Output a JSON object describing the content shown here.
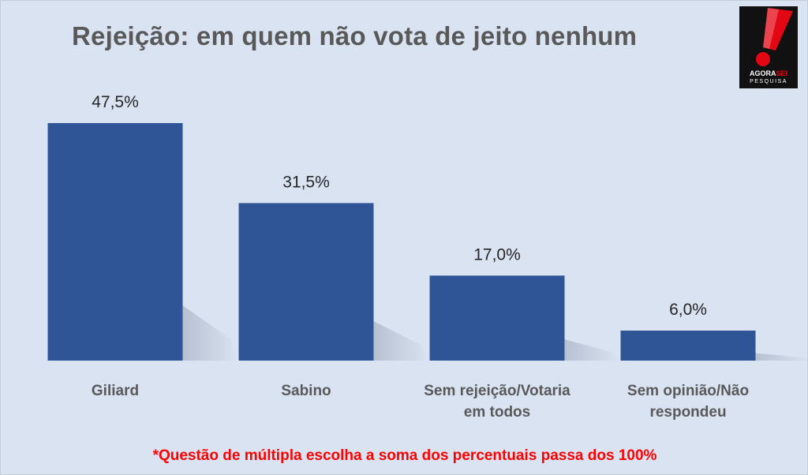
{
  "chart_data": {
    "type": "bar",
    "title": "Rejeição: em quem não vota de jeito nenhum",
    "categories": [
      "Giliard",
      "Sabino",
      "Sem rejeição/Votaria em todos",
      "Sem opinião/Não respondeu"
    ],
    "category_lines": [
      [
        "Giliard"
      ],
      [
        "Sabino"
      ],
      [
        "Sem rejeição/Votaria",
        "em todos"
      ],
      [
        "Sem opinião/Não",
        "respondeu"
      ]
    ],
    "values": [
      47.5,
      31.5,
      17.0,
      6.0
    ],
    "data_labels": [
      "47,5%",
      "31,5%",
      "17,0%",
      "6,0%"
    ],
    "xlabel": "",
    "ylabel": "",
    "ylim": [
      0,
      50
    ],
    "grid": false,
    "legend": "none",
    "bar_color": "#2f5597",
    "footnote": "*Questão de múltipla escolha a soma dos percentuais passa dos 100%"
  },
  "logo": {
    "brand_a": "AGORA",
    "brand_b": "SEI",
    "sub": "PESQUISA"
  },
  "colors": {
    "background": "#d9e3f2",
    "title": "#595959",
    "footnote": "#ff0000",
    "logo_red": "#e30613"
  }
}
